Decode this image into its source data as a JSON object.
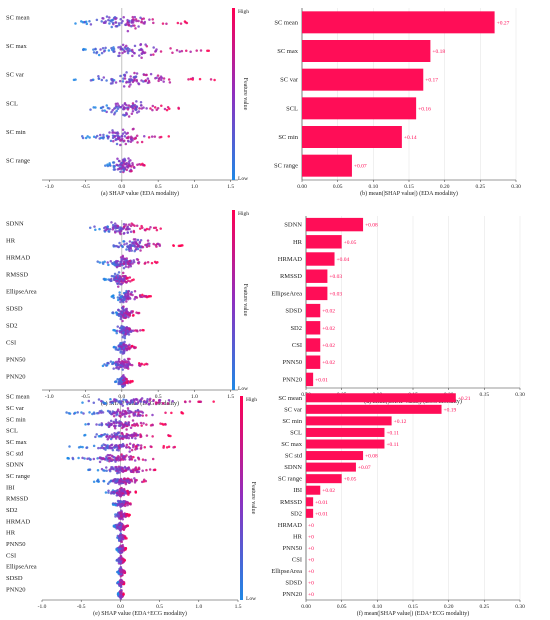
{
  "colors": {
    "high": "#ff0052",
    "low": "#1e88e5",
    "bar": "#ff0d57",
    "grid": "#e6e6e6"
  },
  "colorbar": {
    "high_label": "High",
    "low_label": "Low",
    "title": "Feature value"
  },
  "chart_data": [
    {
      "id": "a",
      "type": "scatter",
      "subtype": "beeswarm",
      "xlabel": "(a) SHAP value (EDA modality)",
      "xlim": [
        -1.1,
        1.6
      ],
      "ticks": [
        -1.0,
        -0.5,
        0.0,
        0.5,
        1.0,
        1.5
      ],
      "tick_labels": [
        "-1.0",
        "-0.5",
        "0.0",
        "0.5",
        "1.0",
        "1.5"
      ],
      "categories": [
        "SC mean",
        "SC max",
        "SC var",
        "SCL",
        "SC min",
        "SC range"
      ],
      "spread": [
        [
          -0.65,
          0.95
        ],
        [
          -0.6,
          1.2
        ],
        [
          -0.7,
          1.3
        ],
        [
          -0.5,
          0.8
        ],
        [
          -0.55,
          0.7
        ],
        [
          -0.25,
          0.35
        ]
      ]
    },
    {
      "id": "b",
      "type": "bar",
      "orientation": "horizontal",
      "xlabel": "(b) mean(|SHAP value|) (EDA modality)",
      "xlim": [
        0,
        0.3
      ],
      "ticks": [
        0,
        0.05,
        0.1,
        0.15,
        0.2,
        0.25,
        0.3
      ],
      "tick_labels": [
        "0.00",
        "0.05",
        "0.10",
        "0.15",
        "0.20",
        "0.25",
        "0.30"
      ],
      "categories": [
        "SC mean",
        "SC max",
        "SC var",
        "SCL",
        "SC min",
        "SC range"
      ],
      "values": [
        0.27,
        0.18,
        0.17,
        0.16,
        0.14,
        0.07
      ],
      "labels": [
        "+0.27",
        "+0.18",
        "+0.17",
        "+0.16",
        "+0.14",
        "+0.07"
      ]
    },
    {
      "id": "c",
      "type": "scatter",
      "subtype": "beeswarm",
      "xlabel": "(c) SHAP value (ECG modality)",
      "xlim": [
        -1.1,
        1.6
      ],
      "ticks": [
        -1.0,
        -0.5,
        0.0,
        0.5,
        1.0,
        1.5
      ],
      "tick_labels": [
        "-1.0",
        "-0.5",
        "0.0",
        "0.5",
        "1.0",
        "1.5"
      ],
      "categories": [
        "SDNN",
        "HR",
        "HRMAD",
        "RMSSD",
        "EllipseArea",
        "SDSD",
        "SD2",
        "CSI",
        "PNN50",
        "PNN20"
      ],
      "spread": [
        [
          -0.5,
          0.55
        ],
        [
          -0.2,
          0.85
        ],
        [
          -0.35,
          0.5
        ],
        [
          -0.25,
          0.2
        ],
        [
          -0.15,
          0.4
        ],
        [
          -0.15,
          0.25
        ],
        [
          -0.12,
          0.3
        ],
        [
          -0.12,
          0.2
        ],
        [
          -0.3,
          0.35
        ],
        [
          -0.1,
          0.15
        ]
      ]
    },
    {
      "id": "d",
      "type": "bar",
      "orientation": "horizontal",
      "xlabel": "(d) mean(|SHAP value|) (ECG modality)",
      "xlim": [
        0,
        0.3
      ],
      "ticks": [
        0,
        0.05,
        0.1,
        0.15,
        0.2,
        0.25,
        0.3
      ],
      "tick_labels": [
        "0.00",
        "0.05",
        "0.10",
        "0.15",
        "0.20",
        "0.25",
        "0.30"
      ],
      "categories": [
        "SDNN",
        "HR",
        "HRMAD",
        "RMSSD",
        "EllipseArea",
        "SDSD",
        "SD2",
        "CSI",
        "PNN50",
        "PNN20"
      ],
      "values": [
        0.08,
        0.05,
        0.04,
        0.03,
        0.03,
        0.02,
        0.02,
        0.02,
        0.02,
        0.01
      ],
      "labels": [
        "+0.08",
        "+0.05",
        "+0.04",
        "+0.03",
        "+0.03",
        "+0.02",
        "+0.02",
        "+0.02",
        "+0.02",
        "+0.01"
      ]
    },
    {
      "id": "e",
      "type": "scatter",
      "subtype": "beeswarm",
      "xlabel": "(e) SHAP value (EDA+ECG modality)",
      "xlim": [
        -1.0,
        1.5
      ],
      "ticks": [
        -1.0,
        -0.5,
        0.0,
        0.5,
        1.0,
        1.5
      ],
      "tick_labels": [
        "-1.0",
        "-0.5",
        "0.0",
        "0.5",
        "1.0",
        "1.5"
      ],
      "categories": [
        "SC mean",
        "SC var",
        "SC min",
        "SCL",
        "SC max",
        "SC std",
        "SDNN",
        "SC range",
        "IBI",
        "RMSSD",
        "SD2",
        "HRMAD",
        "HR",
        "PNN50",
        "CSI",
        "EllipseArea",
        "SDSD",
        "PNN20"
      ],
      "spread": [
        [
          -0.6,
          1.2
        ],
        [
          -0.7,
          0.9
        ],
        [
          -0.6,
          0.6
        ],
        [
          -0.55,
          0.65
        ],
        [
          -0.65,
          0.7
        ],
        [
          -0.7,
          0.55
        ],
        [
          -0.45,
          0.5
        ],
        [
          -0.35,
          0.4
        ],
        [
          -0.2,
          0.2
        ],
        [
          -0.1,
          0.15
        ],
        [
          -0.1,
          0.12
        ],
        [
          -0.1,
          0.1
        ],
        [
          -0.05,
          0.08
        ],
        [
          -0.05,
          0.08
        ],
        [
          -0.05,
          0.06
        ],
        [
          -0.04,
          0.06
        ],
        [
          -0.04,
          0.05
        ],
        [
          -0.03,
          0.04
        ]
      ]
    },
    {
      "id": "f",
      "type": "bar",
      "orientation": "horizontal",
      "xlabel": "(f) mean(|SHAP value|) (EDA+ECG modality)",
      "xlim": [
        0,
        0.3
      ],
      "ticks": [
        0,
        0.05,
        0.1,
        0.15,
        0.2,
        0.25,
        0.3
      ],
      "tick_labels": [
        "0.00",
        "0.05",
        "0.10",
        "0.15",
        "0.20",
        "0.25",
        "0.30"
      ],
      "categories": [
        "SC mean",
        "SC var",
        "SC min",
        "SCL",
        "SC max",
        "SC std",
        "SDNN",
        "SC range",
        "IBI",
        "RMSSD",
        "SD2",
        "HRMAD",
        "HR",
        "PNN50",
        "CSI",
        "EllipseArea",
        "SDSD",
        "PNN20"
      ],
      "values": [
        0.21,
        0.19,
        0.12,
        0.11,
        0.11,
        0.08,
        0.07,
        0.05,
        0.02,
        0.01,
        0.01,
        0,
        0,
        0,
        0,
        0,
        0,
        0
      ],
      "labels": [
        "+0.21",
        "+0.19",
        "+0.12",
        "+0.11",
        "+0.11",
        "+0.08",
        "+0.07",
        "+0.05",
        "+0.02",
        "+0.01",
        "+0.01",
        "+0",
        "+0",
        "+0",
        "+0",
        "+0",
        "+0",
        "+0"
      ]
    }
  ]
}
